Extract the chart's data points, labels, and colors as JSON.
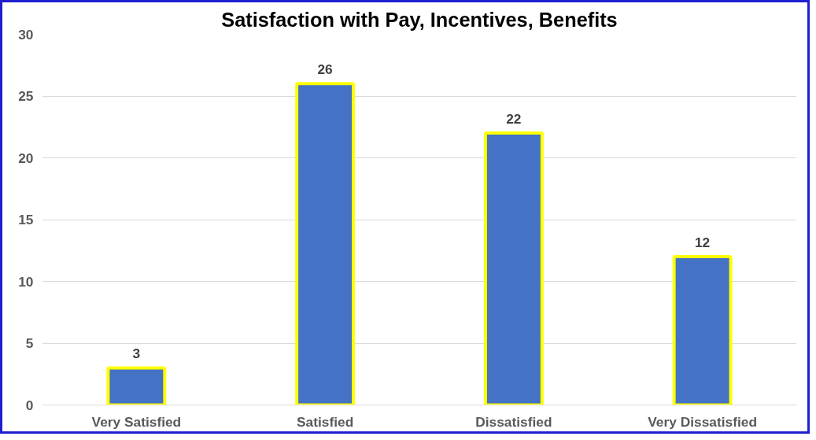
{
  "chart_data": {
    "type": "bar",
    "title": "Satisfaction with Pay, Incentives, Benefits",
    "categories": [
      "Very Satisfied",
      "Satisfied",
      "Dissatisfied",
      "Very Dissatisfied"
    ],
    "values": [
      3,
      26,
      22,
      12
    ],
    "color": "#4472c4",
    "ylim": [
      0,
      30
    ],
    "yticks": [
      0,
      5,
      10,
      15,
      20,
      25,
      30
    ],
    "grid": "y",
    "data_labels": true
  }
}
